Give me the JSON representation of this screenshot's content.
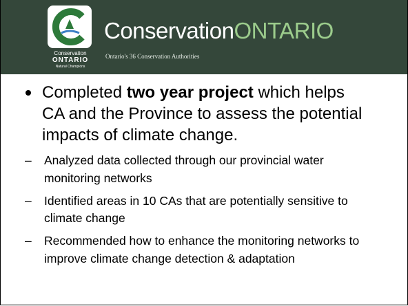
{
  "header": {
    "brand": "Conservation",
    "brand_accent": "ONTARIO",
    "tagline": "Ontario's 36 Conservation Authorities",
    "logo_text": [
      "Conservation",
      "ONTARIO",
      "Natural Champions"
    ]
  },
  "bullet": {
    "parts": [
      "Completed ",
      "two year project",
      " which helps CA and the Province to assess the potential impacts of climate change."
    ]
  },
  "subbullets": [
    "Analyzed data collected through our provincial water monitoring networks",
    "Identified areas in 10 CAs that are potentially sensitive to climate change",
    "Recommended how to enhance the monitoring networks to improve climate change detection & adaptation"
  ]
}
